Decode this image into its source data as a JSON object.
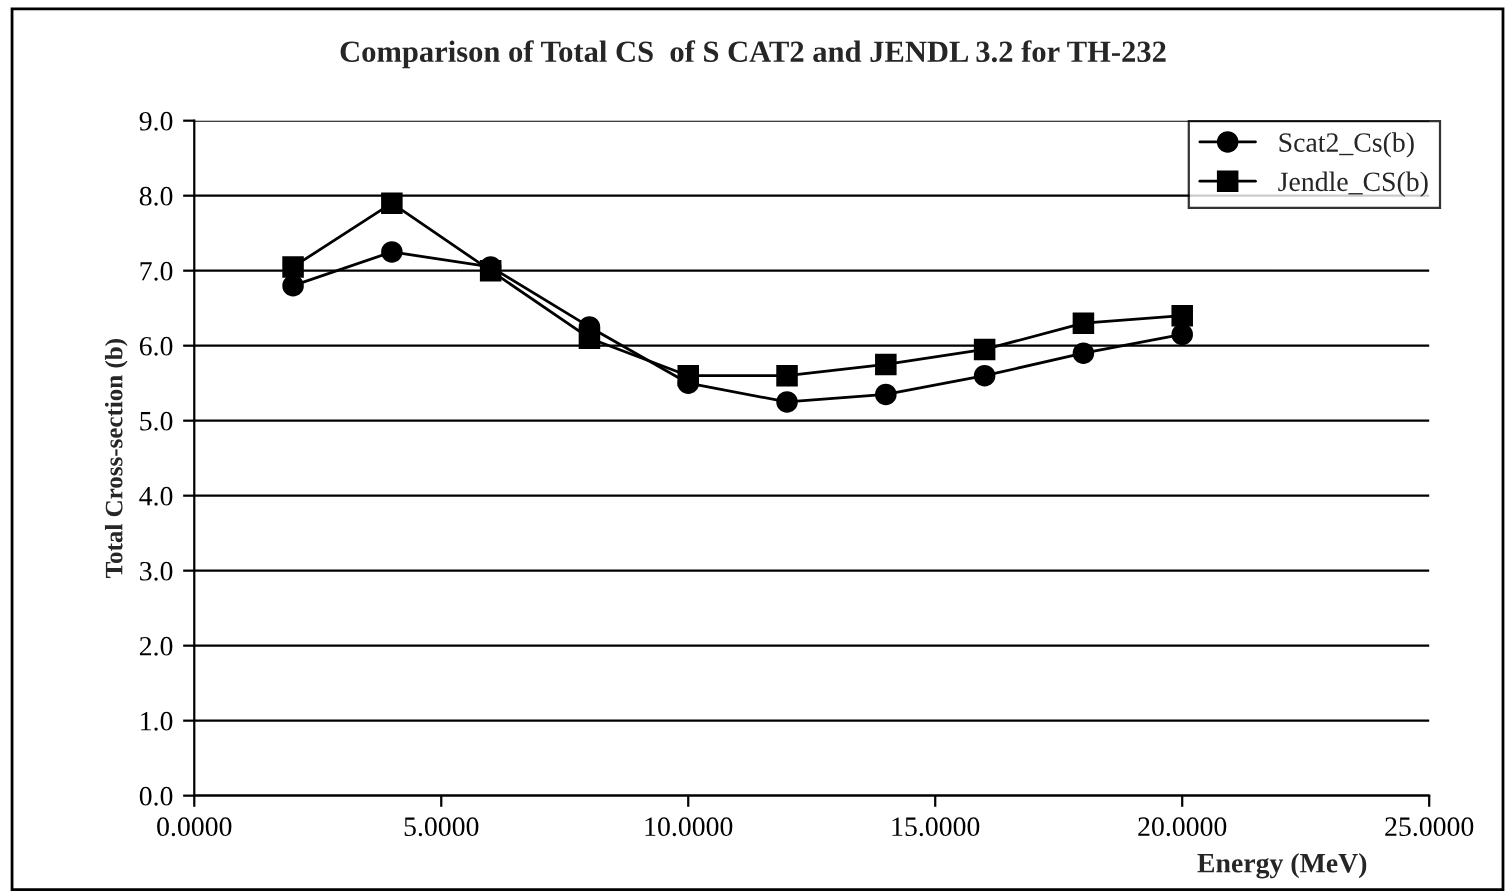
{
  "chart_data": {
    "type": "line",
    "title": "Comparison of Total CS  of S CAT2 and JENDL 3.2 for TH-232",
    "xlabel": "Energy (MeV)",
    "ylabel": "Total Cross-section (b)",
    "x": [
      2,
      4,
      6,
      8,
      10,
      12,
      14,
      16,
      18,
      20
    ],
    "series": [
      {
        "name": "Scat2_Cs(b)",
        "color": "#000000",
        "marker": "circle",
        "values": [
          6.8,
          7.25,
          7.05,
          6.25,
          5.5,
          5.25,
          5.35,
          5.6,
          5.9,
          6.15
        ]
      },
      {
        "name": "Jendle_CS(b)",
        "color": "#000000",
        "marker": "square",
        "values": [
          7.05,
          7.9,
          7.0,
          6.1,
          5.6,
          5.6,
          5.75,
          5.95,
          6.3,
          6.4
        ]
      }
    ],
    "xlim": [
      0,
      25
    ],
    "xticks": [
      {
        "value": 0,
        "label": "0.0000"
      },
      {
        "value": 5,
        "label": "5.0000"
      },
      {
        "value": 10,
        "label": "10.0000"
      },
      {
        "value": 15,
        "label": "15.0000"
      },
      {
        "value": 20,
        "label": "20.0000"
      },
      {
        "value": 25,
        "label": "25.0000"
      }
    ],
    "ylim": [
      0,
      9
    ],
    "yticks": [
      {
        "value": 0,
        "label": "0.0"
      },
      {
        "value": 1,
        "label": "1.0"
      },
      {
        "value": 2,
        "label": "2.0"
      },
      {
        "value": 3,
        "label": "3.0"
      },
      {
        "value": 4,
        "label": "4.0"
      },
      {
        "value": 5,
        "label": "5.0"
      },
      {
        "value": 6,
        "label": "6.0"
      },
      {
        "value": 7,
        "label": "7.0"
      },
      {
        "value": 8,
        "label": "8.0"
      },
      {
        "value": 9,
        "label": "9.0"
      }
    ],
    "grid": "y",
    "legend": "top right",
    "line_style": "solid"
  }
}
